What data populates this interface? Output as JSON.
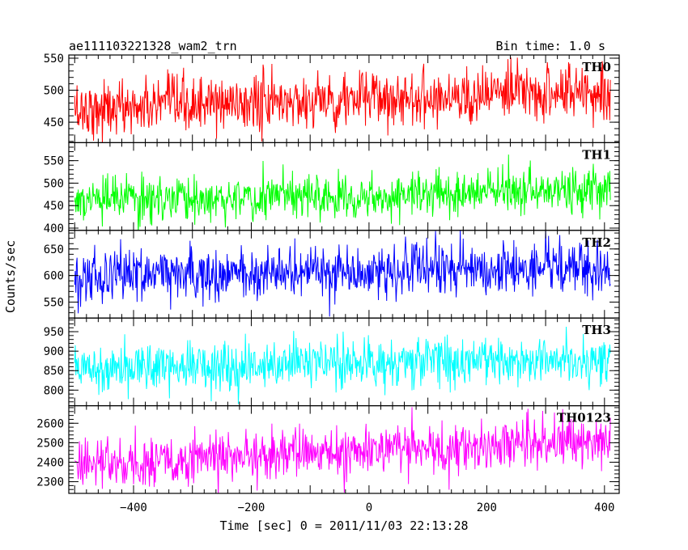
{
  "chart_data": {
    "type": "line",
    "title": "ae111103221328_wam2_trn",
    "bin_time": "Bin time: 1.0 s",
    "xlabel": "Time [sec] 0 = 2011/11/03 22:13:28",
    "ylabel": "Counts/sec",
    "xlim": [
      -510,
      425
    ],
    "x_ticks": [
      -400,
      -200,
      0,
      200,
      400
    ],
    "x_start": -500,
    "x_end": 410,
    "panels": [
      {
        "name": "TH0",
        "color": "#ff0000",
        "ylim": [
          418,
          555
        ],
        "y_ticks": [
          450,
          500,
          550
        ],
        "mean_start": 470,
        "mean_end": 500,
        "noise": 22
      },
      {
        "name": "TH1",
        "color": "#00ff00",
        "ylim": [
          395,
          590
        ],
        "y_ticks": [
          400,
          450,
          500,
          550
        ],
        "mean_start": 460,
        "mean_end": 485,
        "noise": 25
      },
      {
        "name": "TH2",
        "color": "#0000ff",
        "ylim": [
          520,
          685
        ],
        "y_ticks": [
          550,
          600,
          650
        ],
        "mean_start": 600,
        "mean_end": 615,
        "noise": 25
      },
      {
        "name": "TH3",
        "color": "#00ffff",
        "ylim": [
          760,
          985
        ],
        "y_ticks": [
          800,
          850,
          900,
          950
        ],
        "mean_start": 860,
        "mean_end": 880,
        "noise": 32
      },
      {
        "name": "TH0123",
        "color": "#ff00ff",
        "ylim": [
          2240,
          2690
        ],
        "y_ticks": [
          2300,
          2400,
          2500,
          2600
        ],
        "mean_start": 2385,
        "mean_end": 2520,
        "noise": 65
      }
    ]
  }
}
